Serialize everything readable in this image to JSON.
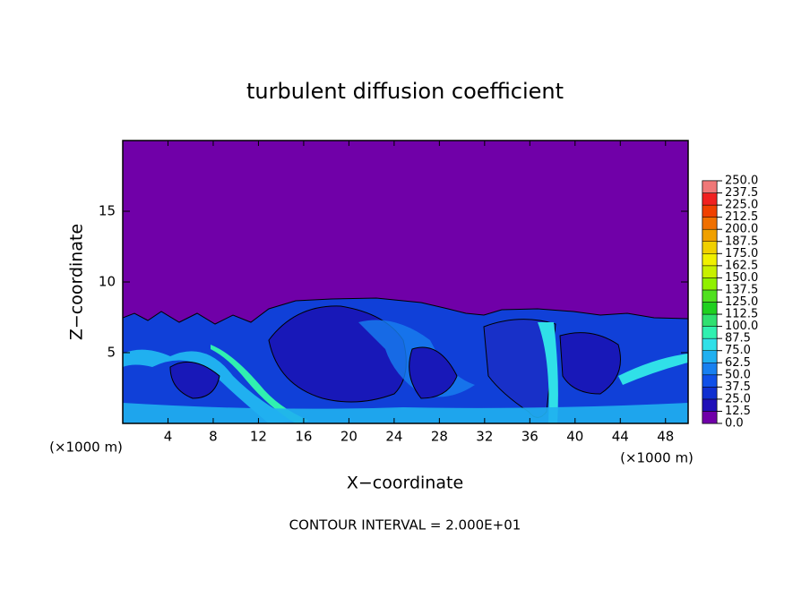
{
  "chart_data": {
    "type": "contour",
    "title": "turbulent diffusion coefficient",
    "xlabel": "X−coordinate",
    "ylabel": "Z−coordinate",
    "x_unit_labels": [
      "(×1000 m)",
      "(×1000 m)"
    ],
    "annotation": "CONTOUR INTERVAL = 2.000E+01",
    "xlim": [
      0,
      50
    ],
    "ylim": [
      0,
      20
    ],
    "xticks": [
      4,
      8,
      12,
      16,
      20,
      24,
      28,
      32,
      36,
      40,
      44,
      48
    ],
    "yticks": [
      5,
      10,
      15
    ],
    "grid": false,
    "colorbar": {
      "levels": [
        {
          "value": 0,
          "label": "0.0"
        },
        {
          "value": 12.5,
          "label": "12.5"
        },
        {
          "value": 25,
          "label": "25.0"
        },
        {
          "value": 37.5,
          "label": "37.5"
        },
        {
          "value": 50,
          "label": "50.0"
        },
        {
          "value": 62.5,
          "label": "62.5"
        },
        {
          "value": 75,
          "label": "75.0"
        },
        {
          "value": 87.5,
          "label": "87.5"
        },
        {
          "value": 100,
          "label": "100.0"
        },
        {
          "value": 112.5,
          "label": "112.5"
        },
        {
          "value": 125,
          "label": "125.0"
        },
        {
          "value": 137.5,
          "label": "137.5"
        },
        {
          "value": 150,
          "label": "150.0"
        },
        {
          "value": 162.5,
          "label": "162.5"
        },
        {
          "value": 175,
          "label": "175.0"
        },
        {
          "value": 187.5,
          "label": "187.5"
        },
        {
          "value": 200,
          "label": "200.0"
        },
        {
          "value": 212.5,
          "label": "212.5"
        },
        {
          "value": 225,
          "label": "225.0"
        },
        {
          "value": 237.5,
          "label": "237.5"
        },
        {
          "value": 250,
          "label": "250.0"
        }
      ],
      "colors": [
        "#7000a8",
        "#2010b8",
        "#1030d0",
        "#1050e8",
        "#1880f0",
        "#20b0f0",
        "#30e0e8",
        "#30f0b0",
        "#30e070",
        "#20d020",
        "#50e020",
        "#90f000",
        "#c8f000",
        "#f0f000",
        "#f0d000",
        "#f0a000",
        "#f07000",
        "#f04000",
        "#f02020",
        "#f07878"
      ]
    }
  }
}
